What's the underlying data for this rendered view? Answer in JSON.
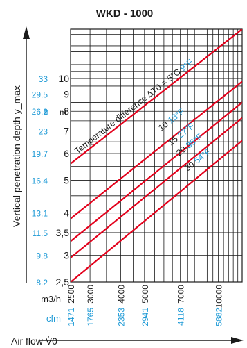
{
  "chart_data": {
    "type": "line",
    "title": "WKD - 1000",
    "xlabel": "Air flow V̇0",
    "ylabel": "Vertical penetration depth y_max",
    "x_scale": "log",
    "y_scale": "log",
    "xlim": [
      2500,
      12500
    ],
    "ylim": [
      2.5,
      14
    ],
    "x_ticks": [
      {
        "m3h": "2500",
        "cfm": "1471"
      },
      {
        "m3h": "3000",
        "cfm": "1765"
      },
      {
        "m3h": "4000",
        "cfm": "2353"
      },
      {
        "m3h": "5000",
        "cfm": "2941"
      },
      {
        "m3h": "7000",
        "cfm": "4118"
      },
      {
        "m3h": "10000",
        "cfm": "5882"
      }
    ],
    "x_units": {
      "primary": "m3/h",
      "secondary": "cfm"
    },
    "y_units": {
      "primary": "m",
      "secondary": "ft"
    },
    "y_ticks": [
      {
        "m": "2,5",
        "ft": "8.2"
      },
      {
        "m": "3",
        "ft": "9.8"
      },
      {
        "m": "3,5",
        "ft": "11.5"
      },
      {
        "m": "4",
        "ft": "13.1"
      },
      {
        "m": "5",
        "ft": "16.4"
      },
      {
        "m": "6",
        "ft": "19.7"
      },
      {
        "m": "7",
        "ft": "23"
      },
      {
        "m": "8",
        "ft": "26.2"
      },
      {
        "m": "9",
        "ft": "29.5"
      },
      {
        "m": "10",
        "ft": "33"
      }
    ],
    "annotation": "Temperature difference ΔT0 = ",
    "series": [
      {
        "name": "5°C",
        "label_c": "5°C",
        "label_f": "9°F",
        "points": [
          [
            2500,
            5.6
          ],
          [
            12500,
            14.0
          ]
        ]
      },
      {
        "name": "10",
        "label_c": "10",
        "label_f": "18°F",
        "points": [
          [
            2500,
            3.85
          ],
          [
            12500,
            9.8
          ]
        ]
      },
      {
        "name": "15",
        "label_c": "15",
        "label_f": "27°F",
        "points": [
          [
            2500,
            3.3
          ],
          [
            12500,
            8.5
          ]
        ]
      },
      {
        "name": "20",
        "label_c": "20",
        "label_f": "36°F",
        "points": [
          [
            2500,
            2.95
          ],
          [
            12500,
            7.65
          ]
        ]
      },
      {
        "name": "30",
        "label_c": "30",
        "label_f": "54°F",
        "points": [
          [
            2500,
            2.5
          ],
          [
            12500,
            6.55
          ]
        ]
      }
    ],
    "grid": true,
    "line_color": "#e3001b",
    "secondary_color": "#1e9ad6"
  }
}
